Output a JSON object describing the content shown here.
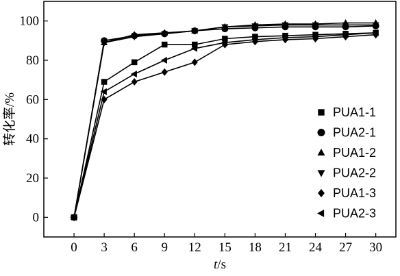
{
  "chart_data": {
    "type": "line",
    "x": [
      0,
      3,
      6,
      9,
      12,
      15,
      18,
      21,
      24,
      27,
      30
    ],
    "xlabel_italic": "t",
    "xlabel_unit": "/s",
    "ylabel": "转化率/%",
    "xlim": [
      -3,
      32
    ],
    "ylim": [
      -10,
      110
    ],
    "xticks": [
      0,
      3,
      6,
      9,
      12,
      15,
      18,
      21,
      24,
      27,
      30
    ],
    "yticks": [
      0,
      20,
      40,
      60,
      80,
      100
    ],
    "grid": false,
    "legend_position": "right",
    "series": [
      {
        "name": "PUA1-1",
        "marker": "square",
        "values": [
          0,
          69,
          79,
          88,
          88,
          91,
          92,
          92.5,
          93,
          93.5,
          94
        ]
      },
      {
        "name": "PUA2-1",
        "marker": "circle",
        "values": [
          0,
          90,
          92.5,
          93.5,
          95,
          96,
          96.5,
          97,
          97,
          97,
          97.5
        ]
      },
      {
        "name": "PUA1-2",
        "marker": "triangle-up",
        "values": [
          0,
          89,
          93,
          94,
          95,
          97,
          98,
          98.5,
          98.5,
          99,
          99
        ]
      },
      {
        "name": "PUA2-2",
        "marker": "triangle-down",
        "values": [
          0,
          89,
          92,
          93.5,
          95,
          97,
          97.5,
          98,
          98,
          98,
          98
        ]
      },
      {
        "name": "PUA1-3",
        "marker": "diamond",
        "values": [
          0,
          60,
          69,
          74,
          79,
          88,
          89.5,
          90.5,
          91,
          92,
          93
        ]
      },
      {
        "name": "PUA2-3",
        "marker": "triangle-left",
        "values": [
          0,
          64,
          73,
          80,
          86,
          89,
          90.5,
          91.5,
          92,
          93,
          94
        ]
      }
    ]
  }
}
